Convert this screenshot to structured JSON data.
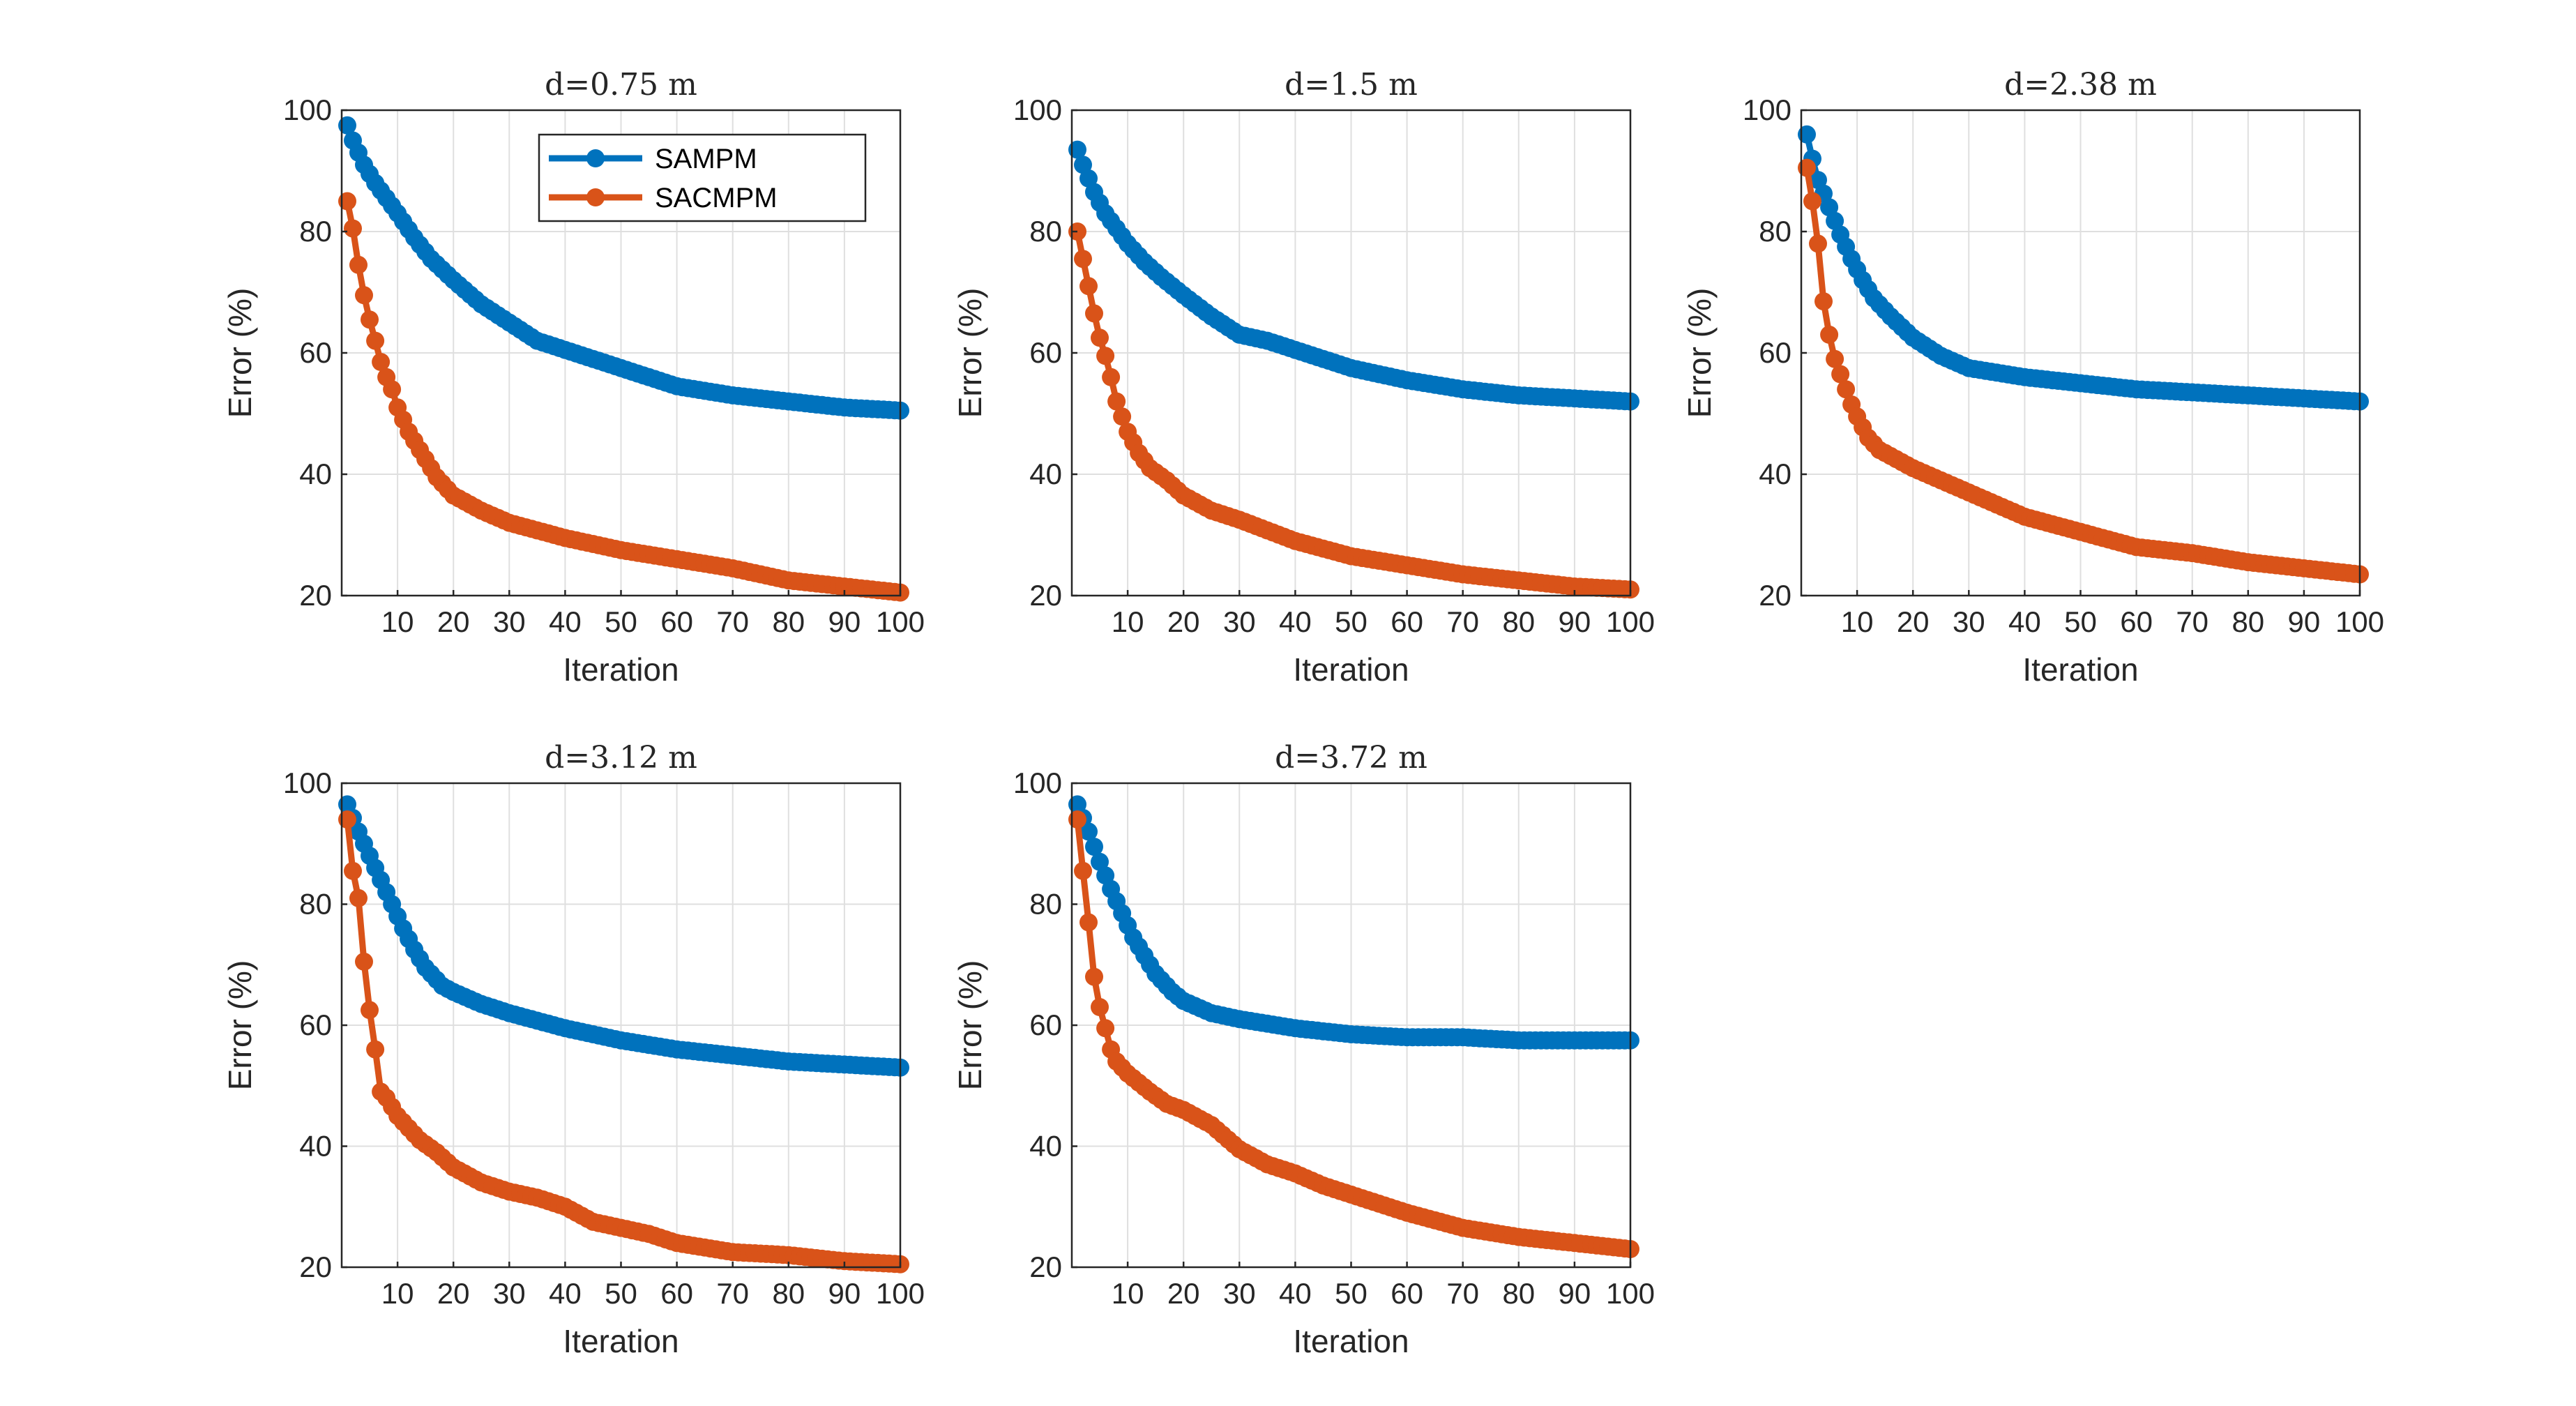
{
  "chart_data": [
    {
      "type": "line",
      "title": "d=0.75 m",
      "xlabel": "Iteration",
      "ylabel": "Error (%)",
      "xlim": [
        0,
        100
      ],
      "ylim": [
        20,
        100
      ],
      "xticks": [
        10,
        20,
        30,
        40,
        50,
        60,
        70,
        80,
        90,
        100
      ],
      "yticks": [
        20,
        40,
        60,
        80,
        100
      ],
      "grid": true,
      "legend": {
        "placement": "top-center",
        "entries": [
          "SAMPM",
          "SACMPM"
        ]
      },
      "series": [
        {
          "name": "SAMPM",
          "color": "#0072BD",
          "x": [
            1,
            2,
            4,
            6,
            8,
            10,
            13,
            16,
            20,
            25,
            30,
            35,
            40,
            50,
            60,
            70,
            80,
            90,
            100
          ],
          "y": [
            97.5,
            95,
            91,
            88,
            85.5,
            83,
            79,
            75.5,
            72,
            68,
            65,
            62,
            60.5,
            57.5,
            54.5,
            53,
            52,
            51,
            50.5
          ]
        },
        {
          "name": "SACMPM",
          "color": "#D95319",
          "x": [
            1,
            2,
            3,
            4,
            5,
            6,
            7,
            8,
            9,
            10,
            12,
            14,
            17,
            20,
            25,
            30,
            40,
            50,
            60,
            70,
            80,
            90,
            100
          ],
          "y": [
            85,
            80.5,
            74.5,
            69.5,
            65.5,
            62,
            58.5,
            56,
            54,
            51,
            47,
            44,
            39.5,
            36.5,
            34,
            32,
            29.5,
            27.5,
            26,
            24.5,
            22.5,
            21.5,
            20.5
          ]
        }
      ]
    },
    {
      "type": "line",
      "title": "d=1.5 m",
      "xlabel": "Iteration",
      "ylabel": "Error (%)",
      "xlim": [
        0,
        100
      ],
      "ylim": [
        20,
        100
      ],
      "xticks": [
        10,
        20,
        30,
        40,
        50,
        60,
        70,
        80,
        90,
        100
      ],
      "yticks": [
        20,
        40,
        60,
        80,
        100
      ],
      "grid": true,
      "series": [
        {
          "name": "SAMPM",
          "color": "#0072BD",
          "x": [
            1,
            2,
            4,
            6,
            8,
            10,
            13,
            16,
            20,
            25,
            30,
            35,
            40,
            50,
            60,
            70,
            80,
            90,
            100
          ],
          "y": [
            93.5,
            91,
            86.5,
            83,
            80.5,
            78,
            75,
            72.5,
            69.5,
            66,
            63,
            62,
            60.5,
            57.5,
            55.5,
            54,
            53,
            52.5,
            52
          ]
        },
        {
          "name": "SACMPM",
          "color": "#D95319",
          "x": [
            1,
            2,
            3,
            4,
            5,
            6,
            7,
            8,
            9,
            10,
            12,
            14,
            17,
            20,
            25,
            30,
            40,
            50,
            60,
            70,
            80,
            90,
            100
          ],
          "y": [
            80,
            75.5,
            71,
            66.5,
            62.5,
            59.5,
            56,
            52,
            49.5,
            47,
            43.5,
            41,
            39,
            36.5,
            34,
            32.5,
            29,
            26.5,
            25,
            23.5,
            22.5,
            21.5,
            21
          ]
        }
      ]
    },
    {
      "type": "line",
      "title": "d=2.38 m",
      "xlabel": "Iteration",
      "ylabel": "Error (%)",
      "xlim": [
        0,
        100
      ],
      "ylim": [
        20,
        100
      ],
      "xticks": [
        10,
        20,
        30,
        40,
        50,
        60,
        70,
        80,
        90,
        100
      ],
      "yticks": [
        20,
        40,
        60,
        80,
        100
      ],
      "grid": true,
      "series": [
        {
          "name": "SAMPM",
          "color": "#0072BD",
          "x": [
            1,
            2,
            3,
            5,
            7,
            9,
            11,
            13,
            16,
            20,
            25,
            30,
            40,
            50,
            60,
            70,
            80,
            90,
            100
          ],
          "y": [
            96,
            92,
            88.5,
            84,
            79.5,
            75.5,
            72,
            69,
            66,
            62.5,
            59.5,
            57.5,
            56,
            55,
            54,
            53.5,
            53,
            52.5,
            52
          ]
        },
        {
          "name": "SACMPM",
          "color": "#D95319",
          "x": [
            1,
            2,
            3,
            4,
            5,
            6,
            7,
            8,
            9,
            10,
            12,
            14,
            17,
            20,
            25,
            30,
            35,
            40,
            50,
            60,
            70,
            80,
            90,
            100
          ],
          "y": [
            90.5,
            85,
            78,
            68.5,
            63,
            59,
            56.5,
            54,
            51.5,
            49.5,
            46,
            44,
            42.5,
            41,
            39,
            37,
            35,
            33,
            30.5,
            28,
            27,
            25.5,
            24.5,
            23.5
          ]
        }
      ]
    },
    {
      "type": "line",
      "title": "d=3.12 m",
      "xlabel": "Iteration",
      "ylabel": "Error (%)",
      "xlim": [
        0,
        100
      ],
      "ylim": [
        20,
        100
      ],
      "xticks": [
        10,
        20,
        30,
        40,
        50,
        60,
        70,
        80,
        90,
        100
      ],
      "yticks": [
        20,
        40,
        60,
        80,
        100
      ],
      "grid": true,
      "series": [
        {
          "name": "SAMPM",
          "color": "#0072BD",
          "x": [
            1,
            3,
            5,
            7,
            9,
            11,
            13,
            15,
            18,
            20,
            25,
            30,
            40,
            50,
            60,
            70,
            80,
            90,
            100
          ],
          "y": [
            96.5,
            92,
            88,
            84,
            80,
            76,
            72.5,
            69.5,
            66.5,
            65.5,
            63.5,
            62,
            59.5,
            57.5,
            56,
            55,
            54,
            53.5,
            53
          ]
        },
        {
          "name": "SACMPM",
          "color": "#D95319",
          "x": [
            1,
            2,
            3,
            4,
            5,
            6,
            7,
            8,
            9,
            10,
            12,
            14,
            17,
            20,
            25,
            30,
            35,
            40,
            45,
            50,
            55,
            60,
            70,
            80,
            90,
            100
          ],
          "y": [
            94,
            85.5,
            81,
            70.5,
            62.5,
            56,
            49,
            48,
            46.5,
            45,
            43,
            41,
            39,
            36.5,
            34,
            32.5,
            31.5,
            30,
            27.5,
            26.5,
            25.5,
            24,
            22.5,
            22,
            21,
            20.5
          ]
        }
      ]
    },
    {
      "type": "line",
      "title": "d=3.72 m",
      "xlabel": "Iteration",
      "ylabel": "Error (%)",
      "xlim": [
        0,
        100
      ],
      "ylim": [
        20,
        100
      ],
      "xticks": [
        10,
        20,
        30,
        40,
        50,
        60,
        70,
        80,
        90,
        100
      ],
      "yticks": [
        20,
        40,
        60,
        80,
        100
      ],
      "grid": true,
      "series": [
        {
          "name": "SAMPM",
          "color": "#0072BD",
          "x": [
            1,
            3,
            5,
            7,
            9,
            11,
            13,
            15,
            18,
            20,
            25,
            30,
            40,
            50,
            60,
            70,
            80,
            90,
            100
          ],
          "y": [
            96.5,
            92,
            87,
            82.5,
            78.5,
            74.5,
            71.5,
            68.5,
            65.5,
            64,
            62,
            61,
            59.5,
            58.5,
            58,
            58,
            57.5,
            57.5,
            57.5
          ]
        },
        {
          "name": "SACMPM",
          "color": "#D95319",
          "x": [
            1,
            2,
            3,
            4,
            5,
            6,
            7,
            8,
            10,
            12,
            14,
            17,
            20,
            25,
            30,
            35,
            40,
            45,
            50,
            60,
            70,
            80,
            90,
            100
          ],
          "y": [
            94,
            85.5,
            77,
            68,
            63,
            59.5,
            56,
            54,
            52,
            50.5,
            49,
            47,
            46,
            43.5,
            39.5,
            37,
            35.5,
            33.5,
            32,
            29,
            26.5,
            25,
            24,
            23
          ]
        }
      ]
    }
  ]
}
